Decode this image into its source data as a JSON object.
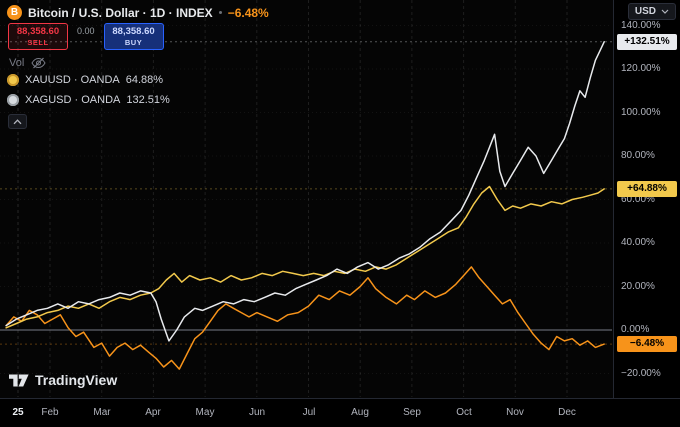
{
  "header": {
    "title": "Bitcoin / U.S. Dollar · 1D · INDEX",
    "change": "−6.48%",
    "change_color": "#f7931a",
    "trade_panel": {
      "sell_price": "88,358.60",
      "sell_label": "SELL",
      "spread": "0.00",
      "buy_price": "88,358.60",
      "buy_label": "BUY"
    },
    "vol_label": "Vol",
    "compare_symbols": [
      {
        "id": "xauusd",
        "name": "XAUUSD · OANDA",
        "value": "64.88%",
        "color": "#f2c94c"
      },
      {
        "id": "xagusd",
        "name": "XAGUSD · OANDA",
        "value": "132.51%",
        "color": "#e8eaed"
      }
    ]
  },
  "price_scale": {
    "currency_button": "USD",
    "ticks": [
      {
        "label": "140.00%",
        "value": 140
      },
      {
        "label": "120.00%",
        "value": 120
      },
      {
        "label": "100.00%",
        "value": 100
      },
      {
        "label": "80.00%",
        "value": 80
      },
      {
        "label": "60.00%",
        "value": 60
      },
      {
        "label": "40.00%",
        "value": 40
      },
      {
        "label": "20.00%",
        "value": 20
      },
      {
        "label": "0.00%",
        "value": 0
      },
      {
        "label": "−20.00%",
        "value": -20
      }
    ],
    "badges": [
      {
        "id": "xagusd",
        "label": "+132.51%",
        "value": 132.51,
        "bg": "#e8eaed",
        "fg": "#000000"
      },
      {
        "id": "xauusd",
        "label": "+64.88%",
        "value": 64.88,
        "bg": "#f2c94c",
        "fg": "#000000"
      },
      {
        "id": "btcusd",
        "label": "−6.48%",
        "value": -6.48,
        "bg": "#f7931a",
        "fg": "#000000"
      }
    ]
  },
  "time_scale": {
    "year_label": "25",
    "months": [
      {
        "label": "Feb",
        "m": 1
      },
      {
        "label": "Mar",
        "m": 2
      },
      {
        "label": "Apr",
        "m": 3
      },
      {
        "label": "May",
        "m": 4
      },
      {
        "label": "Jun",
        "m": 5
      },
      {
        "label": "Jul",
        "m": 6
      },
      {
        "label": "Aug",
        "m": 7
      },
      {
        "label": "Sep",
        "m": 8
      },
      {
        "label": "Oct",
        "m": 9
      },
      {
        "label": "Nov",
        "m": 10
      },
      {
        "label": "Dec",
        "m": 11
      }
    ]
  },
  "attribution": "TradingView",
  "chart_data": {
    "type": "line",
    "x_unit": "months since 2025-01-01",
    "y_unit": "percent change",
    "y_range": [
      -20,
      140
    ],
    "zero_line": 0,
    "legend_position": "top-left",
    "series": [
      {
        "id": "btcusd",
        "name": "Bitcoin / U.S. Dollar (INDEX)",
        "color": "#f7931a",
        "last_pct": -6.48,
        "points": [
          [
            0.15,
            2
          ],
          [
            0.3,
            6
          ],
          [
            0.45,
            4
          ],
          [
            0.6,
            9
          ],
          [
            0.75,
            7
          ],
          [
            0.9,
            3
          ],
          [
            1.05,
            5
          ],
          [
            1.2,
            7
          ],
          [
            1.35,
            1
          ],
          [
            1.5,
            -3
          ],
          [
            1.65,
            -1
          ],
          [
            1.85,
            -8
          ],
          [
            2.0,
            -6
          ],
          [
            2.15,
            -12
          ],
          [
            2.3,
            -8
          ],
          [
            2.45,
            -6
          ],
          [
            2.6,
            -9
          ],
          [
            2.75,
            -7
          ],
          [
            2.9,
            -10
          ],
          [
            3.05,
            -13
          ],
          [
            3.2,
            -17
          ],
          [
            3.35,
            -14
          ],
          [
            3.5,
            -18
          ],
          [
            3.65,
            -11
          ],
          [
            3.8,
            -4
          ],
          [
            3.95,
            -1
          ],
          [
            4.1,
            4
          ],
          [
            4.25,
            9
          ],
          [
            4.4,
            12
          ],
          [
            4.55,
            10
          ],
          [
            4.7,
            8
          ],
          [
            4.85,
            6
          ],
          [
            5.0,
            8
          ],
          [
            5.2,
            6
          ],
          [
            5.4,
            4
          ],
          [
            5.6,
            7
          ],
          [
            5.8,
            8
          ],
          [
            6.0,
            11
          ],
          [
            6.2,
            16
          ],
          [
            6.4,
            14
          ],
          [
            6.6,
            18
          ],
          [
            6.8,
            16
          ],
          [
            7.0,
            20
          ],
          [
            7.15,
            24
          ],
          [
            7.3,
            19
          ],
          [
            7.5,
            15
          ],
          [
            7.7,
            12
          ],
          [
            7.9,
            16
          ],
          [
            8.05,
            14
          ],
          [
            8.25,
            18
          ],
          [
            8.45,
            15
          ],
          [
            8.65,
            17
          ],
          [
            8.85,
            21
          ],
          [
            9.0,
            25
          ],
          [
            9.15,
            29
          ],
          [
            9.3,
            24
          ],
          [
            9.45,
            20
          ],
          [
            9.6,
            16
          ],
          [
            9.75,
            12
          ],
          [
            9.9,
            14
          ],
          [
            10.05,
            8
          ],
          [
            10.2,
            3
          ],
          [
            10.35,
            -2
          ],
          [
            10.5,
            -6
          ],
          [
            10.65,
            -9
          ],
          [
            10.8,
            -3
          ],
          [
            10.95,
            -5
          ],
          [
            11.1,
            -4
          ],
          [
            11.25,
            -7
          ],
          [
            11.4,
            -5
          ],
          [
            11.55,
            -8
          ],
          [
            11.72,
            -6.48
          ]
        ]
      },
      {
        "id": "xauusd",
        "name": "Gold / U.S. Dollar (OANDA)",
        "color": "#f2c94c",
        "last_pct": 64.88,
        "points": [
          [
            0.15,
            1
          ],
          [
            0.35,
            3
          ],
          [
            0.55,
            5
          ],
          [
            0.75,
            6
          ],
          [
            0.95,
            8
          ],
          [
            1.15,
            9
          ],
          [
            1.35,
            11
          ],
          [
            1.55,
            10
          ],
          [
            1.75,
            12
          ],
          [
            1.95,
            10
          ],
          [
            2.15,
            13
          ],
          [
            2.35,
            15
          ],
          [
            2.55,
            14
          ],
          [
            2.75,
            16
          ],
          [
            2.95,
            17
          ],
          [
            3.1,
            19
          ],
          [
            3.25,
            23
          ],
          [
            3.4,
            26
          ],
          [
            3.55,
            22
          ],
          [
            3.7,
            25
          ],
          [
            3.9,
            23
          ],
          [
            4.1,
            24
          ],
          [
            4.3,
            22
          ],
          [
            4.5,
            25
          ],
          [
            4.7,
            23
          ],
          [
            4.9,
            24
          ],
          [
            5.1,
            26
          ],
          [
            5.3,
            25
          ],
          [
            5.5,
            27
          ],
          [
            5.7,
            26
          ],
          [
            5.9,
            25
          ],
          [
            6.1,
            26
          ],
          [
            6.3,
            25
          ],
          [
            6.5,
            27
          ],
          [
            6.7,
            26
          ],
          [
            6.9,
            28
          ],
          [
            7.1,
            27
          ],
          [
            7.3,
            29
          ],
          [
            7.5,
            28
          ],
          [
            7.7,
            30
          ],
          [
            7.9,
            33
          ],
          [
            8.1,
            36
          ],
          [
            8.3,
            39
          ],
          [
            8.5,
            42
          ],
          [
            8.7,
            45
          ],
          [
            8.9,
            47
          ],
          [
            9.05,
            52
          ],
          [
            9.2,
            58
          ],
          [
            9.35,
            63
          ],
          [
            9.5,
            66
          ],
          [
            9.65,
            60
          ],
          [
            9.8,
            55
          ],
          [
            9.95,
            57
          ],
          [
            10.1,
            56
          ],
          [
            10.3,
            58
          ],
          [
            10.5,
            57
          ],
          [
            10.7,
            59
          ],
          [
            10.9,
            58
          ],
          [
            11.1,
            60
          ],
          [
            11.3,
            61
          ],
          [
            11.45,
            62
          ],
          [
            11.6,
            63
          ],
          [
            11.72,
            64.88
          ]
        ]
      },
      {
        "id": "xagusd",
        "name": "Silver / U.S. Dollar (OANDA)",
        "color": "#e8eaed",
        "last_pct": 132.51,
        "points": [
          [
            0.15,
            2
          ],
          [
            0.35,
            5
          ],
          [
            0.55,
            7
          ],
          [
            0.75,
            9
          ],
          [
            0.95,
            10
          ],
          [
            1.15,
            12
          ],
          [
            1.35,
            10
          ],
          [
            1.55,
            13
          ],
          [
            1.75,
            12
          ],
          [
            1.95,
            14
          ],
          [
            2.15,
            15
          ],
          [
            2.35,
            17
          ],
          [
            2.55,
            16
          ],
          [
            2.75,
            18
          ],
          [
            2.95,
            17
          ],
          [
            3.05,
            13
          ],
          [
            3.15,
            5
          ],
          [
            3.3,
            -5
          ],
          [
            3.45,
            0
          ],
          [
            3.6,
            6
          ],
          [
            3.8,
            10
          ],
          [
            3.95,
            9
          ],
          [
            4.15,
            11
          ],
          [
            4.35,
            13
          ],
          [
            4.55,
            12
          ],
          [
            4.75,
            14
          ],
          [
            4.95,
            13
          ],
          [
            5.15,
            15
          ],
          [
            5.35,
            17
          ],
          [
            5.55,
            16
          ],
          [
            5.75,
            19
          ],
          [
            5.95,
            21
          ],
          [
            6.15,
            23
          ],
          [
            6.35,
            25
          ],
          [
            6.55,
            28
          ],
          [
            6.75,
            26
          ],
          [
            6.95,
            29
          ],
          [
            7.15,
            31
          ],
          [
            7.35,
            28
          ],
          [
            7.55,
            30
          ],
          [
            7.75,
            33
          ],
          [
            7.95,
            35
          ],
          [
            8.15,
            38
          ],
          [
            8.35,
            42
          ],
          [
            8.55,
            45
          ],
          [
            8.75,
            50
          ],
          [
            8.95,
            55
          ],
          [
            9.1,
            62
          ],
          [
            9.25,
            70
          ],
          [
            9.4,
            78
          ],
          [
            9.5,
            84
          ],
          [
            9.6,
            90
          ],
          [
            9.7,
            73
          ],
          [
            9.8,
            66
          ],
          [
            9.95,
            72
          ],
          [
            10.1,
            78
          ],
          [
            10.25,
            84
          ],
          [
            10.4,
            80
          ],
          [
            10.55,
            72
          ],
          [
            10.7,
            78
          ],
          [
            10.85,
            84
          ],
          [
            10.95,
            88
          ],
          [
            11.05,
            95
          ],
          [
            11.15,
            103
          ],
          [
            11.25,
            110
          ],
          [
            11.35,
            107
          ],
          [
            11.45,
            116
          ],
          [
            11.55,
            124
          ],
          [
            11.65,
            129
          ],
          [
            11.72,
            132.51
          ]
        ]
      }
    ]
  }
}
